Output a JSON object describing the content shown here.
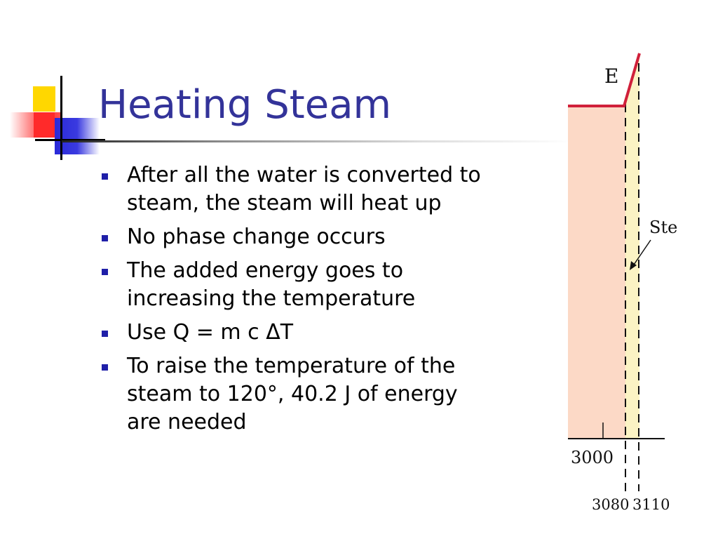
{
  "slide": {
    "title": "Heating Steam",
    "bullets": [
      {
        "text": "After all the water is converted to steam, the steam will heat up"
      },
      {
        "text": "No phase change occurs"
      },
      {
        "text": "The added energy goes to increasing the temperature"
      },
      {
        "text": "Use Q = m c ΔT"
      },
      {
        "text": "To raise the temperature of the steam to 120°, 40.2 J of energy are needed"
      }
    ],
    "accent_colors": {
      "title": "#333399",
      "bullet_marker": "#1f1fa8",
      "graph_line": "#d0203a",
      "region_fill": "#fcd9c6",
      "steam_band": "#fbf3c4"
    }
  },
  "figure": {
    "point_label": "E",
    "region_label": "Ste",
    "axis_ticks": {
      "t1": "3000",
      "t2": "3080",
      "t3": "3110"
    }
  }
}
